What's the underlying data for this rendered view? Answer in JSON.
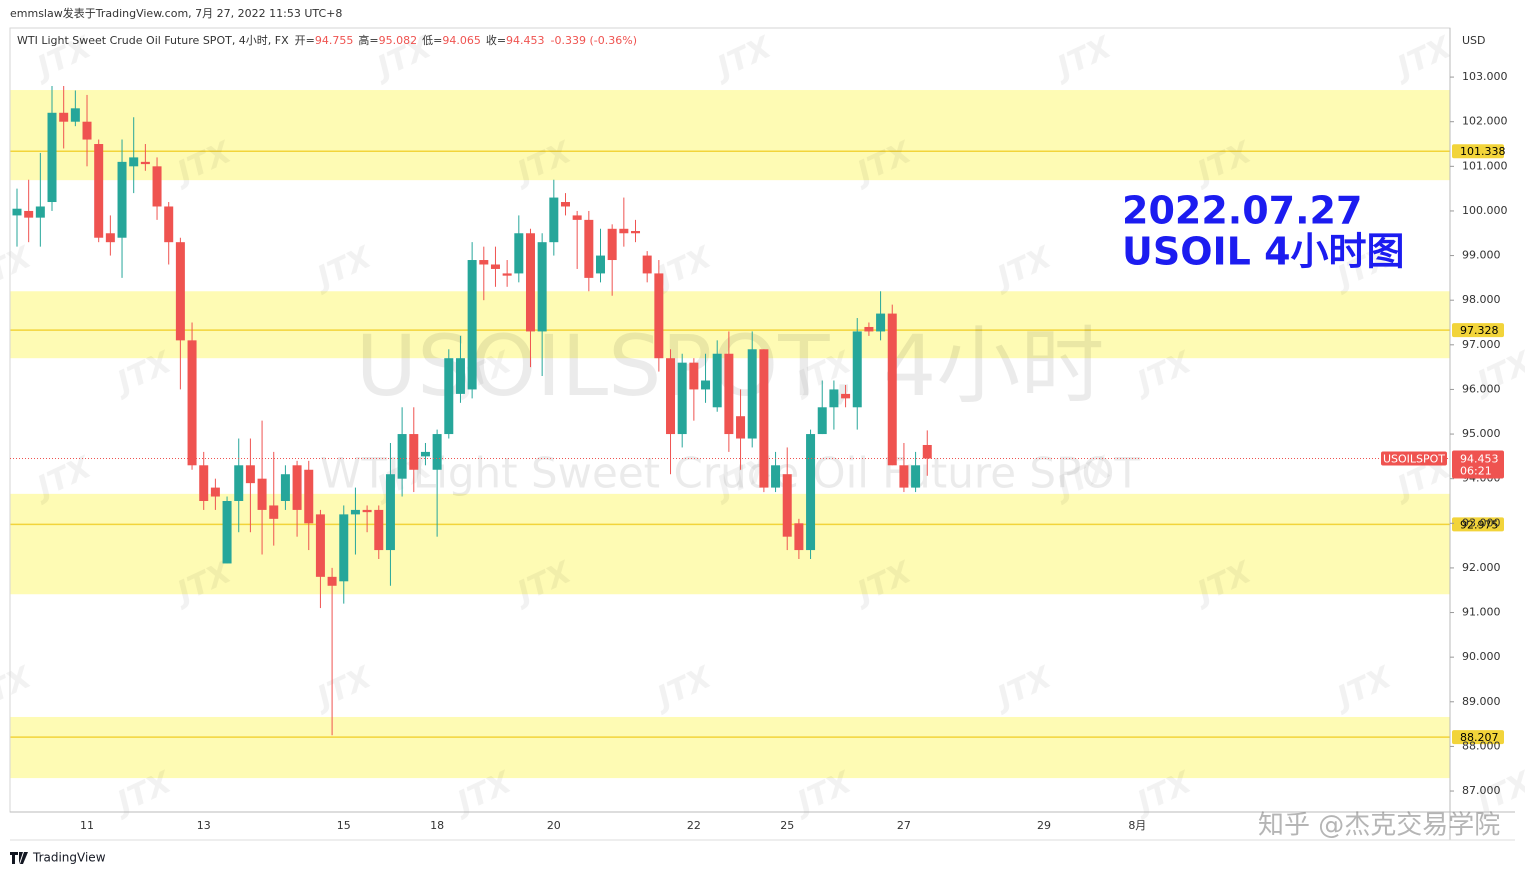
{
  "header": {
    "publisher": "emmslaw发表于TradingView.com, 7月 27, 2022 11:53 UTC+8",
    "brand": "TradingView"
  },
  "chart_data": {
    "type": "candlestick",
    "title": "WTI Light Sweet Crude Oil Future SPOT, 4小时, FX",
    "ohlc_legend": [
      {
        "label": "开=",
        "value": 94.755
      },
      {
        "label": "高=",
        "value": 95.082
      },
      {
        "label": "低=",
        "value": 94.065
      },
      {
        "label": "收=",
        "value": 94.453
      }
    ],
    "change": "-0.339 (-0.36%)",
    "annotations": [
      "2022.07.27",
      "USOIL 4小时图"
    ],
    "watermark": "USOILSPOT, 4小时",
    "watermark_sub": "WTI Light Sweet Crude Oil Future SPOT",
    "watermark_tile": "JTX",
    "credit": "知乎 @杰克交易学院",
    "currency": "USD",
    "categories": [
      null,
      null,
      null,
      null,
      null,
      null,
      "11",
      null,
      null,
      null,
      null,
      null,
      null,
      null,
      null,
      null,
      "13",
      null,
      null,
      null,
      null,
      null,
      null,
      null,
      null,
      null,
      null,
      null,
      "15",
      null,
      null,
      null,
      null,
      null,
      null,
      null,
      "18",
      null,
      null,
      null,
      null,
      null,
      null,
      null,
      null,
      null,
      "20",
      null,
      null,
      null,
      null,
      null,
      null,
      null,
      null,
      null,
      null,
      null,
      "22",
      null,
      null,
      null,
      null,
      null,
      null,
      null,
      "25",
      null,
      null,
      null,
      null,
      null,
      null,
      null,
      null,
      null,
      "27",
      null,
      null,
      null,
      null,
      null,
      null,
      null,
      null,
      null,
      null,
      null,
      "29",
      null,
      null,
      null,
      null,
      null,
      null,
      null,
      "8月"
    ],
    "open": [
      99.9,
      100.0,
      99.85,
      100.2,
      102.2,
      102.0,
      102.0,
      101.5,
      99.5,
      99.4,
      101.0,
      101.1,
      101.0,
      100.1,
      99.3,
      97.1,
      94.3,
      93.8,
      92.1,
      93.5,
      94.3,
      94.0,
      93.4,
      93.5,
      94.3,
      94.2,
      93.2,
      91.8,
      91.7,
      93.2,
      93.3,
      93.3,
      92.4,
      94.0,
      95.0,
      94.5,
      94.2,
      95.0,
      95.9,
      96.0,
      98.9,
      98.8,
      98.6,
      98.6,
      99.5,
      97.3,
      99.3,
      100.2,
      99.9,
      99.8,
      98.6,
      99.6,
      99.6,
      99.55,
      99.0,
      98.6,
      96.7,
      95.0,
      96.6,
      96.0,
      95.6,
      96.8,
      95.4,
      94.9,
      96.9,
      93.8,
      94.1,
      93.0,
      92.4,
      95.0,
      95.6,
      95.9,
      95.6,
      97.4,
      97.3,
      97.7,
      94.3,
      93.8,
      94.755,
      null,
      null,
      null,
      null,
      null,
      null,
      null,
      null,
      null,
      null,
      null,
      null,
      null,
      null,
      null,
      null,
      null,
      null
    ],
    "high": [
      100.5,
      100.7,
      101.3,
      102.8,
      102.8,
      102.7,
      102.6,
      101.6,
      99.9,
      101.6,
      102.1,
      101.5,
      101.2,
      100.2,
      99.4,
      97.5,
      94.6,
      94.0,
      93.6,
      94.9,
      94.9,
      95.3,
      94.6,
      94.3,
      94.4,
      94.4,
      93.3,
      92.0,
      93.4,
      93.8,
      93.4,
      93.4,
      94.8,
      95.6,
      95.6,
      94.8,
      95.1,
      96.9,
      97.2,
      99.3,
      99.2,
      99.2,
      98.9,
      99.9,
      99.6,
      99.5,
      100.7,
      100.4,
      100.0,
      100.0,
      99.6,
      99.7,
      100.3,
      99.8,
      99.1,
      98.9,
      96.9,
      96.8,
      96.7,
      96.8,
      97.1,
      97.3,
      96.0,
      97.3,
      96.9,
      94.6,
      94.7,
      93.1,
      95.1,
      96.2,
      96.2,
      96.1,
      97.6,
      97.5,
      98.2,
      97.9,
      94.8,
      94.6,
      95.082,
      null,
      null,
      null,
      null,
      null,
      null,
      null,
      null,
      null,
      null,
      null,
      null,
      null,
      null,
      null,
      null,
      null,
      null
    ],
    "low": [
      99.2,
      99.3,
      99.2,
      100.0,
      101.4,
      101.9,
      101.0,
      99.3,
      99.0,
      98.5,
      100.4,
      100.9,
      99.8,
      98.8,
      96.0,
      94.2,
      93.3,
      93.3,
      92.1,
      92.8,
      92.8,
      92.3,
      92.5,
      93.3,
      92.7,
      92.4,
      91.1,
      88.25,
      91.2,
      92.3,
      92.8,
      92.2,
      91.6,
      93.6,
      93.7,
      94.3,
      92.7,
      94.9,
      95.7,
      95.8,
      98.0,
      98.3,
      98.3,
      98.4,
      96.5,
      96.3,
      99.0,
      99.9,
      98.7,
      98.2,
      98.4,
      98.1,
      99.2,
      99.3,
      98.4,
      96.4,
      94.1,
      94.7,
      95.3,
      95.7,
      95.5,
      94.6,
      94.2,
      94.7,
      93.7,
      93.7,
      92.4,
      92.2,
      92.2,
      95.0,
      95.1,
      95.6,
      95.1,
      97.2,
      97.1,
      94.3,
      93.7,
      93.7,
      94.065,
      null,
      null,
      null,
      null,
      null,
      null,
      null,
      null,
      null,
      null,
      null,
      null,
      null,
      null,
      null,
      null,
      null,
      null
    ],
    "close": [
      100.05,
      99.85,
      100.1,
      102.2,
      102.0,
      102.3,
      101.6,
      99.4,
      99.3,
      101.1,
      101.2,
      101.05,
      100.1,
      99.3,
      97.1,
      94.3,
      93.5,
      93.6,
      93.5,
      94.3,
      93.9,
      93.3,
      93.1,
      94.1,
      93.3,
      93.0,
      91.8,
      91.6,
      93.2,
      93.3,
      93.25,
      92.4,
      94.1,
      95.0,
      94.2,
      94.6,
      95.0,
      96.7,
      96.7,
      98.9,
      98.8,
      98.7,
      98.55,
      99.5,
      97.3,
      99.3,
      100.3,
      100.1,
      99.8,
      98.5,
      99.0,
      98.9,
      99.5,
      99.5,
      98.6,
      96.7,
      95.0,
      96.6,
      96.0,
      96.2,
      96.8,
      95.0,
      94.9,
      96.9,
      93.8,
      94.3,
      92.7,
      92.4,
      95.0,
      95.6,
      96.0,
      95.8,
      97.3,
      97.3,
      97.7,
      94.3,
      93.8,
      94.3,
      94.453,
      null,
      null,
      null,
      null,
      null,
      null,
      null,
      null,
      null,
      null,
      null,
      null,
      null,
      null,
      null,
      null,
      null,
      null
    ],
    "levels": [
      {
        "price": 101.338,
        "zone": [
          100.69,
          102.71
        ]
      },
      {
        "price": 97.328,
        "zone": [
          96.7,
          98.2
        ]
      },
      {
        "price": 92.975,
        "zone": [
          91.41,
          93.66
        ]
      },
      {
        "price": 88.207,
        "zone": [
          87.29,
          88.66
        ]
      }
    ],
    "last_price": {
      "label": "USOILSPOT",
      "value": 94.453,
      "countdown": "06:21"
    },
    "ylim": [
      86.53,
      104.1
    ],
    "yticks": [
      {
        "value": 87,
        "label": "87.000"
      },
      {
        "value": 88,
        "label": "88.000"
      },
      {
        "value": 89,
        "label": "89.000"
      },
      {
        "value": 90,
        "label": "90.000"
      },
      {
        "value": 91,
        "label": "91.000"
      },
      {
        "value": 92,
        "label": "92.000"
      },
      {
        "value": 93,
        "label": "93.000"
      },
      {
        "value": 94,
        "label": "94.000"
      },
      {
        "value": 95,
        "label": "95.000"
      },
      {
        "value": 96,
        "label": "96.000"
      },
      {
        "value": 97,
        "label": "97.000"
      },
      {
        "value": 98,
        "label": "98.000"
      },
      {
        "value": 99,
        "label": "99.000"
      },
      {
        "value": 100,
        "label": "100.000"
      },
      {
        "value": 101,
        "label": "101.000"
      },
      {
        "value": 102,
        "label": "102.000"
      },
      {
        "value": 103,
        "label": "103.000"
      }
    ],
    "grid": false,
    "colors": {
      "up": "#26a69a",
      "down": "#ef5350",
      "level": "#f2d43a",
      "zone": "#fefbb4",
      "annotation": "#1c1cf0",
      "price_line": "#ef5350"
    }
  }
}
